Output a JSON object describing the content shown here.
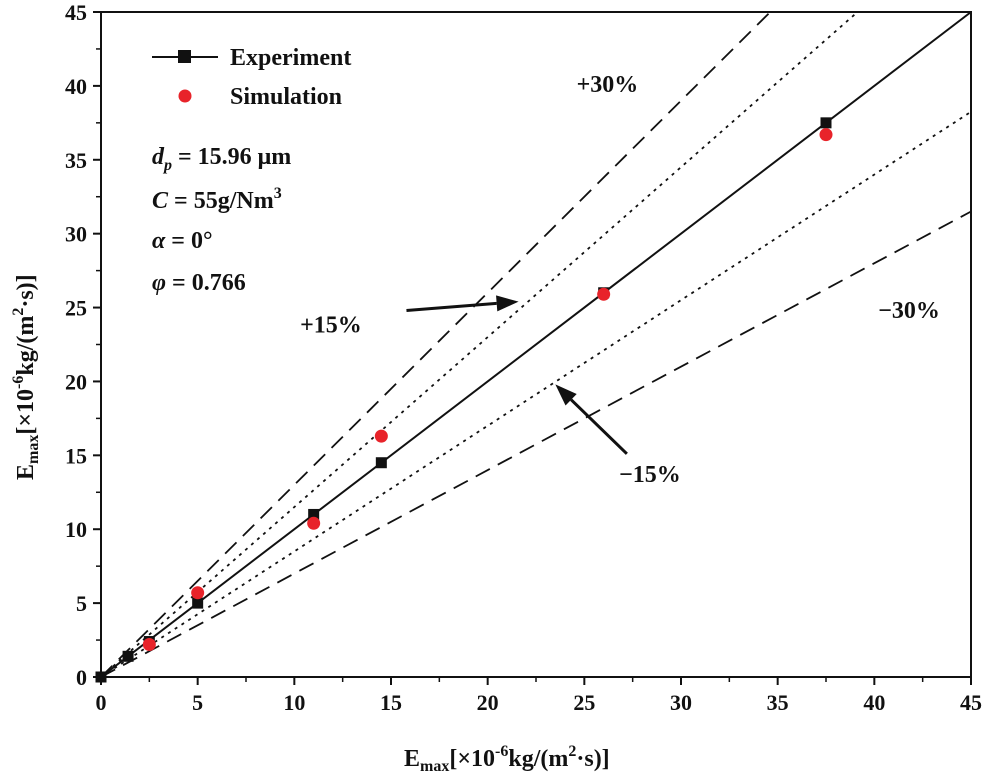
{
  "chart_data": {
    "type": "scatter",
    "xlabel": {
      "main": "E",
      "sub": "max",
      "pre": "[×10",
      "sup": "-6",
      "mid": "kg/(m",
      "sup2": "2",
      "post": "·s)]"
    },
    "ylabel": {
      "main": "E",
      "sub": "max",
      "pre": "[×10",
      "sup": "-6",
      "mid": "kg/(m",
      "sup2": "2",
      "post": "·s)]"
    },
    "xlim": [
      0,
      45
    ],
    "ylim": [
      0,
      45
    ],
    "xticks": [
      "0",
      "5",
      "10",
      "15",
      "20",
      "25",
      "30",
      "35",
      "40",
      "45"
    ],
    "yticks": [
      "0",
      "5",
      "10",
      "15",
      "20",
      "25",
      "30",
      "35",
      "40",
      "45"
    ],
    "grid": false,
    "legend_position": "top-left",
    "series": [
      {
        "name": "Experiment",
        "marker": "square",
        "color": "#111111",
        "x": [
          0,
          1.4,
          2.5,
          5.0,
          11.0,
          14.5,
          26.0,
          37.5
        ],
        "y": [
          0,
          1.4,
          2.4,
          5.0,
          11.0,
          14.5,
          26.0,
          37.5
        ]
      },
      {
        "name": "Simulation",
        "marker": "circle",
        "color": "#e8232a",
        "x": [
          2.5,
          5.0,
          11.0,
          14.5,
          26.0,
          37.5
        ],
        "y": [
          2.2,
          5.7,
          10.4,
          16.3,
          25.9,
          36.7
        ]
      }
    ],
    "reference_lines": [
      {
        "slope": 1.0,
        "style": "solid"
      },
      {
        "slope": 1.15,
        "style": "dotted"
      },
      {
        "slope": 0.85,
        "style": "dotted"
      },
      {
        "slope": 1.3,
        "style": "dashed"
      },
      {
        "slope": 0.7,
        "style": "dashed"
      }
    ],
    "band_labels": [
      {
        "text": "+30%",
        "x": 24.6,
        "y": 39.6
      },
      {
        "text": "+15%",
        "x": 10.3,
        "y": 23.3
      },
      {
        "text": "−30%",
        "x": 40.2,
        "y": 24.3
      },
      {
        "text": "−15%",
        "x": 26.8,
        "y": 13.2
      }
    ],
    "arrows": [
      {
        "from": [
          15.8,
          24.8
        ],
        "to": [
          21.6,
          25.4
        ]
      },
      {
        "from": [
          27.2,
          15.1
        ],
        "to": [
          23.5,
          19.8
        ]
      }
    ],
    "annotations": {
      "dp": {
        "sym": "d",
        "sub": "p",
        "value": " = 15.96 μm"
      },
      "C": {
        "sym": "C",
        "value": " = 55g/Nm",
        "sup": "3"
      },
      "alpha": {
        "sym": "α",
        "value": " = 0°"
      },
      "phi": {
        "sym": "φ",
        "value": " = 0.766"
      }
    }
  }
}
